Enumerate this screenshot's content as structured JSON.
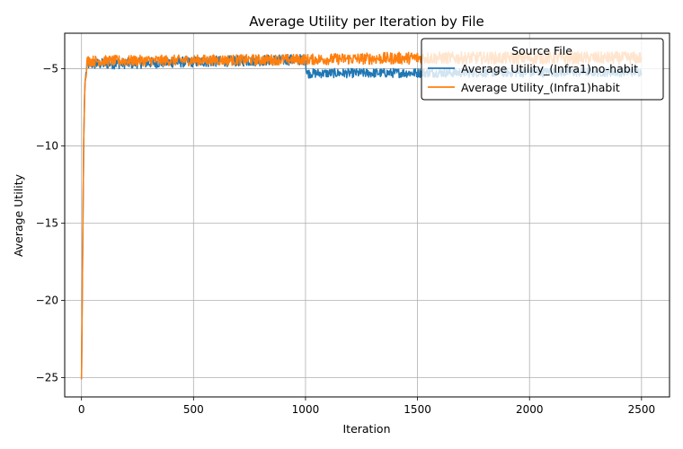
{
  "chart_data": {
    "type": "line",
    "title": "Average Utility per Iteration by File",
    "xlabel": "Iteration",
    "ylabel": "Average Utility",
    "xlim": [
      -75,
      2625
    ],
    "ylim": [
      -26.25,
      -2.7
    ],
    "x_ticks": [
      0,
      500,
      1000,
      1500,
      2000,
      2500
    ],
    "x_tick_labels": [
      "0",
      "500",
      "1000",
      "1500",
      "2000",
      "2500"
    ],
    "y_ticks": [
      -25,
      -20,
      -15,
      -10,
      -5
    ],
    "y_tick_labels": [
      "−25",
      "−20",
      "−15",
      "−10",
      "−5"
    ],
    "grid": true,
    "legend": {
      "title": "Source File",
      "placement": "top-right"
    },
    "series": [
      {
        "name": "Average Utility_(Infra1)no-habit",
        "color": "#1f77b4",
        "keypoints": [
          [
            0,
            -25.1
          ],
          [
            5,
            -17.0
          ],
          [
            10,
            -9.5
          ],
          [
            15,
            -6.0
          ],
          [
            25,
            -4.7
          ],
          [
            1000,
            -4.4
          ],
          [
            1005,
            -5.3
          ],
          [
            2500,
            -5.2
          ]
        ],
        "noise_amplitude": [
          [
            0,
            0.35
          ],
          [
            1000,
            0.35
          ],
          [
            1005,
            0.3
          ],
          [
            2500,
            0.3
          ]
        ]
      },
      {
        "name": "Average Utility_(Infra1)habit",
        "color": "#ff7f0e",
        "keypoints": [
          [
            0,
            -25.1
          ],
          [
            5,
            -17.0
          ],
          [
            10,
            -9.5
          ],
          [
            15,
            -6.0
          ],
          [
            25,
            -4.5
          ],
          [
            1000,
            -4.4
          ],
          [
            1500,
            -4.3
          ],
          [
            2500,
            -4.3
          ]
        ],
        "noise_amplitude": [
          [
            0,
            0.35
          ],
          [
            1000,
            0.35
          ],
          [
            1500,
            0.4
          ],
          [
            2500,
            0.4
          ]
        ]
      }
    ]
  }
}
